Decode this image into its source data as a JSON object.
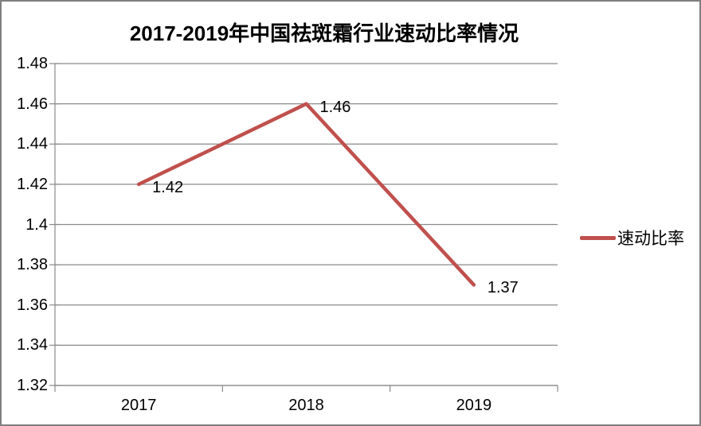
{
  "page": {
    "background_color": "#ffffff",
    "border_color": "#808080",
    "text_color": "#000000"
  },
  "chart_data": {
    "type": "line",
    "title": "2017-2019年中国祛斑霜行业速动比率情况",
    "categories": [
      "2017",
      "2018",
      "2019"
    ],
    "series": [
      {
        "name": "速动比率",
        "values": [
          1.42,
          1.46,
          1.37
        ],
        "point_labels": [
          "1.42",
          "1.46",
          "1.37"
        ],
        "color": "#C0504D"
      }
    ],
    "xlabel": "",
    "ylabel": "",
    "ylim": [
      1.32,
      1.48
    ],
    "ytick_labels": [
      "1.48",
      "1.46",
      "1.44",
      "1.42",
      "1.4",
      "1.38",
      "1.36",
      "1.34",
      "1.32"
    ],
    "grid": true,
    "gridline_color": "#8a8a8a",
    "axis_color": "#8a8a8a",
    "legend_position": "right"
  }
}
